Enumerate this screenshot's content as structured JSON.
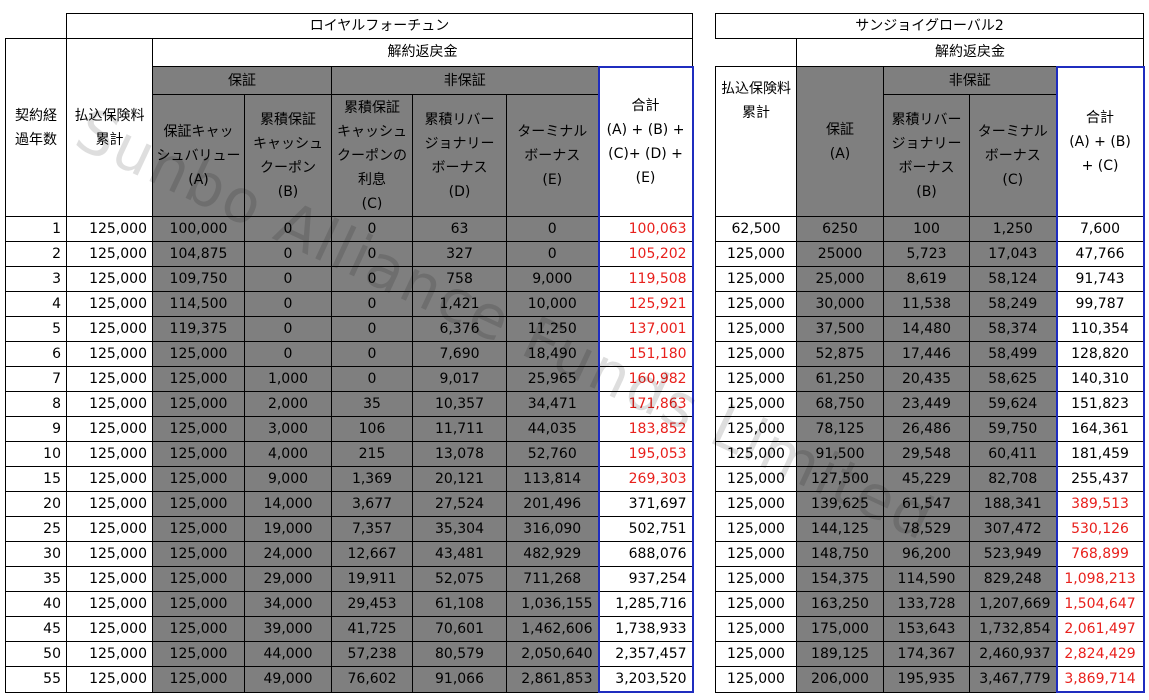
{
  "left": {
    "title": "ロイヤルフォーチュン",
    "year_header": [
      "契約経",
      "過年数"
    ],
    "paid_header": [
      "払込保険料",
      "累計"
    ],
    "cash_header": "解約返戻金",
    "guaranteed_header": "保証",
    "non_guaranteed_header": "非保証",
    "cols": [
      [
        "保証キャッ",
        "シュバリュー",
        "(A)"
      ],
      [
        "累積保証",
        "キャッシュ",
        "クーポン",
        "(B)"
      ],
      [
        "累積保証",
        "キャッシュ",
        "クーポンの",
        "利息",
        "(C)"
      ],
      [
        "累積リバー",
        "ジョナリー",
        "ボーナス",
        "(D)"
      ],
      [
        "ターミナル",
        "ボーナス",
        "(E)"
      ],
      [
        "合計",
        "(A) + (B) +",
        "(C)+ (D) +",
        "(E)"
      ]
    ],
    "rows": [
      [
        "1",
        "125,000",
        "100,000",
        "0",
        "0",
        "63",
        "0",
        "100,063"
      ],
      [
        "2",
        "125,000",
        "104,875",
        "0",
        "0",
        "327",
        "0",
        "105,202"
      ],
      [
        "3",
        "125,000",
        "109,750",
        "0",
        "0",
        "758",
        "9,000",
        "119,508"
      ],
      [
        "4",
        "125,000",
        "114,500",
        "0",
        "0",
        "1,421",
        "10,000",
        "125,921"
      ],
      [
        "5",
        "125,000",
        "119,375",
        "0",
        "0",
        "6,376",
        "11,250",
        "137,001"
      ],
      [
        "6",
        "125,000",
        "125,000",
        "0",
        "0",
        "7,690",
        "18,490",
        "151,180"
      ],
      [
        "7",
        "125,000",
        "125,000",
        "1,000",
        "0",
        "9,017",
        "25,965",
        "160,982"
      ],
      [
        "8",
        "125,000",
        "125,000",
        "2,000",
        "35",
        "10,357",
        "34,471",
        "171,863"
      ],
      [
        "9",
        "125,000",
        "125,000",
        "3,000",
        "106",
        "11,711",
        "44,035",
        "183,852"
      ],
      [
        "10",
        "125,000",
        "125,000",
        "4,000",
        "215",
        "13,078",
        "52,760",
        "195,053"
      ],
      [
        "15",
        "125,000",
        "125,000",
        "9,000",
        "1,369",
        "20,121",
        "113,814",
        "269,303"
      ],
      [
        "20",
        "125,000",
        "125,000",
        "14,000",
        "3,677",
        "27,524",
        "201,496",
        "371,697"
      ],
      [
        "25",
        "125,000",
        "125,000",
        "19,000",
        "7,357",
        "35,304",
        "316,090",
        "502,751"
      ],
      [
        "30",
        "125,000",
        "125,000",
        "24,000",
        "12,667",
        "43,481",
        "482,929",
        "688,076"
      ],
      [
        "35",
        "125,000",
        "125,000",
        "29,000",
        "19,911",
        "52,075",
        "711,268",
        "937,254"
      ],
      [
        "40",
        "125,000",
        "125,000",
        "34,000",
        "29,453",
        "61,108",
        "1,036,155",
        "1,285,716"
      ],
      [
        "45",
        "125,000",
        "125,000",
        "39,000",
        "41,725",
        "70,601",
        "1,462,606",
        "1,738,933"
      ],
      [
        "50",
        "125,000",
        "125,000",
        "44,000",
        "57,238",
        "80,579",
        "2,050,640",
        "2,357,457"
      ],
      [
        "55",
        "125,000",
        "125,000",
        "49,000",
        "76,602",
        "91,066",
        "2,861,853",
        "3,203,520"
      ]
    ],
    "red_total_rows": 11
  },
  "right": {
    "title": "サンジョイグローバル2",
    "paid_header": [
      "払込保険料",
      "累計"
    ],
    "cash_header": "解約返戻金",
    "non_guaranteed_header": "非保証",
    "cols": [
      [
        "保証",
        "(A)"
      ],
      [
        "累積リバー",
        "ジョナリー",
        "ボーナス",
        "(B)"
      ],
      [
        "ターミナル",
        "ボーナス",
        "(C)"
      ],
      [
        "合計",
        "(A) + (B)",
        "+ (C)"
      ]
    ],
    "rows": [
      [
        "62,500",
        "6250",
        "100",
        "1,250",
        "7,600"
      ],
      [
        "125,000",
        "25000",
        "5,723",
        "17,043",
        "47,766"
      ],
      [
        "125,000",
        "25,000",
        "8,619",
        "58,124",
        "91,743"
      ],
      [
        "125,000",
        "30,000",
        "11,538",
        "58,249",
        "99,787"
      ],
      [
        "125,000",
        "37,500",
        "14,480",
        "58,374",
        "110,354"
      ],
      [
        "125,000",
        "52,875",
        "17,446",
        "58,499",
        "128,820"
      ],
      [
        "125,000",
        "61,250",
        "20,435",
        "58,625",
        "140,310"
      ],
      [
        "125,000",
        "68,750",
        "23,449",
        "59,624",
        "151,823"
      ],
      [
        "125,000",
        "78,125",
        "26,486",
        "59,750",
        "164,361"
      ],
      [
        "125,000",
        "91,500",
        "29,548",
        "60,411",
        "181,459"
      ],
      [
        "125,000",
        "127,500",
        "45,229",
        "82,708",
        "255,437"
      ],
      [
        "125,000",
        "139,625",
        "61,547",
        "188,341",
        "389,513"
      ],
      [
        "125,000",
        "144,125",
        "78,529",
        "307,472",
        "530,126"
      ],
      [
        "125,000",
        "148,750",
        "96,200",
        "523,949",
        "768,899"
      ],
      [
        "125,000",
        "154,375",
        "114,590",
        "829,248",
        "1,098,213"
      ],
      [
        "125,000",
        "163,250",
        "133,728",
        "1,207,669",
        "1,504,647"
      ],
      [
        "125,000",
        "175,000",
        "153,643",
        "1,732,854",
        "2,061,497"
      ],
      [
        "125,000",
        "189,125",
        "174,367",
        "2,460,937",
        "2,824,429"
      ],
      [
        "125,000",
        "206,000",
        "195,935",
        "3,467,779",
        "3,869,714"
      ]
    ],
    "red_total_from_row": 11
  },
  "watermark": "Sunbo Alliance Funds Limited",
  "colors": {
    "red": "#e8201c",
    "gray": "#7f7f7f",
    "blue": "#1f2dbf"
  }
}
